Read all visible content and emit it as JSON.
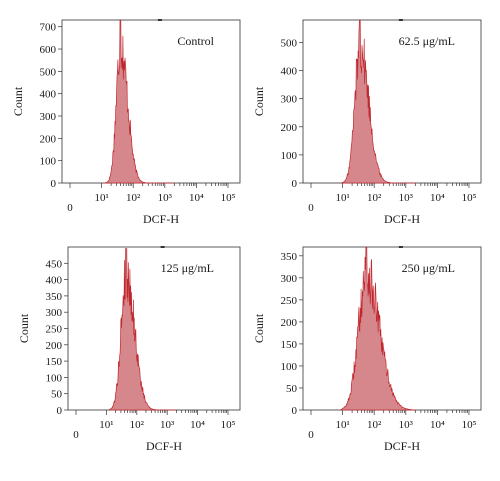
{
  "colors": {
    "fill": "#d6878b",
    "stroke": "#c0282f",
    "frame": "#333333"
  },
  "chart_data": [
    {
      "type": "histogram",
      "annotation": "Control",
      "xlabel": "DCF-H",
      "ylabel": "Count",
      "x_scale": "log (with 0)",
      "x_ticks": [
        "0",
        "10¹",
        "10²",
        "10³",
        "10⁴",
        "10⁵"
      ],
      "y_ticks": [
        0,
        100,
        200,
        300,
        400,
        500,
        600,
        700
      ],
      "ylim": [
        0,
        730
      ],
      "peak_log10": 1.6,
      "peak_count": 730,
      "spread_log10": 0.18,
      "pre_decades": 0.28
    },
    {
      "type": "histogram",
      "annotation": "62.5 μg/mL",
      "xlabel": "DCF-H",
      "ylabel": "Count",
      "x_scale": "log (with 0)",
      "x_ticks": [
        "0",
        "10¹",
        "10²",
        "10³",
        "10⁴",
        "10⁵"
      ],
      "y_ticks": [
        0,
        100,
        200,
        300,
        400,
        500
      ],
      "ylim": [
        0,
        580
      ],
      "peak_log10": 1.55,
      "peak_count": 580,
      "spread_log10": 0.22,
      "pre_decades": 0.35
    },
    {
      "type": "histogram",
      "annotation": "125 μg/mL",
      "xlabel": "DCF-H",
      "ylabel": "Count",
      "x_scale": "log (with 0)",
      "x_ticks": [
        "0",
        "10¹",
        "10²",
        "10³",
        "10⁴",
        "10⁵"
      ],
      "y_ticks": [
        0,
        50,
        100,
        150,
        200,
        250,
        300,
        350,
        400,
        450
      ],
      "ylim": [
        0,
        500
      ],
      "peak_log10": 1.65,
      "peak_count": 495,
      "spread_log10": 0.22,
      "pre_decades": 0.3
    },
    {
      "type": "histogram",
      "annotation": "250 μg/mL",
      "xlabel": "DCF-H",
      "ylabel": "Count",
      "x_scale": "log (with 0)",
      "x_ticks": [
        "0",
        "10¹",
        "10²",
        "10³",
        "10⁴",
        "10⁵"
      ],
      "y_ticks": [
        0,
        50,
        100,
        150,
        200,
        250,
        300,
        350
      ],
      "ylim": [
        0,
        370
      ],
      "peak_log10": 1.75,
      "peak_count": 370,
      "spread_log10": 0.33,
      "pre_decades": 0.55
    }
  ]
}
